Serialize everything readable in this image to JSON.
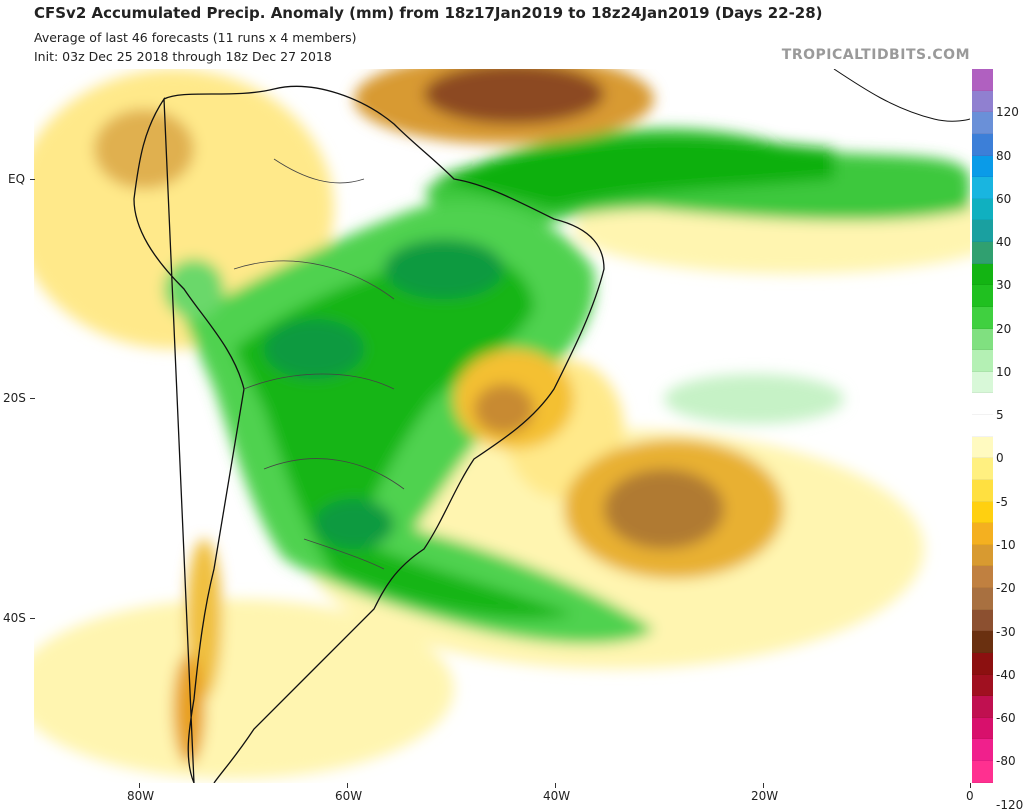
{
  "header": {
    "title": "CFSv2 Accumulated Precip. Anomaly (mm) from 18z17Jan2019 to 18z24Jan2019 (Days 22-28)",
    "subtitle": "Average of last 46 forecasts (11 runs x 4 members)",
    "init": "Init: 03z Dec 25 2018 through 18z Dec 27 2018",
    "credit": "TROPICALTIDBITS.COM"
  },
  "axes": {
    "lat_labels": [
      "EQ",
      "20S",
      "40S"
    ],
    "lon_labels": [
      "80W",
      "60W",
      "40W",
      "20W",
      "0"
    ]
  },
  "colorbar": {
    "labels": [
      "120",
      "80",
      "60",
      "40",
      "30",
      "20",
      "10",
      "5",
      "0",
      "-5",
      "-10",
      "-20",
      "-30",
      "-40",
      "-60",
      "-80",
      "-120"
    ],
    "colors": [
      "#b060c0",
      "#9080d0",
      "#6a90d8",
      "#3c7fd8",
      "#0a9be8",
      "#19b5e0",
      "#10b0c0",
      "#1aa0a0",
      "#30a070",
      "#13b413",
      "#20c020",
      "#40d040",
      "#80e080",
      "#b4f0b4",
      "#d8f8d8",
      "#ffffff",
      "#ffffff",
      "#fffac0",
      "#fff080",
      "#ffe040",
      "#ffd010",
      "#f4b020",
      "#d89a30",
      "#c08040",
      "#a87040",
      "#8c5030",
      "#6a3010",
      "#8c1010",
      "#a01020",
      "#c01050",
      "#d8106c",
      "#f0208c",
      "#ff3090"
    ]
  },
  "map": {
    "region": "South America and South Atlantic",
    "anomaly_features": [
      {
        "area": "Central/West Brazil, Bolivia, Paraguay, S Brazil, Uruguay",
        "sign": "wet",
        "range_mm": "10 to 40"
      },
      {
        "area": "Equatorial Atlantic",
        "sign": "wet",
        "range_mm": "10 to 40"
      },
      {
        "area": "Colombia, Venezuela, Peru, Ecuador",
        "sign": "dry",
        "range_mm": "-5 to -30"
      },
      {
        "area": "Caribbean / north of Brazil",
        "sign": "dry",
        "range_mm": "-20 to -40"
      },
      {
        "area": "SE Brazil coast",
        "sign": "dry",
        "range_mm": "-10 to -30"
      },
      {
        "area": "South Atlantic 20-35S",
        "sign": "dry",
        "range_mm": "-10 to -30"
      },
      {
        "area": "Southern Chile",
        "sign": "dry",
        "range_mm": "-5 to -30"
      }
    ]
  }
}
